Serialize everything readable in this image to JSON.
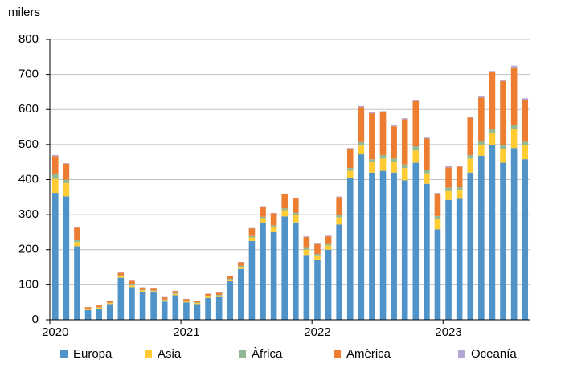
{
  "chart_data": {
    "type": "stacked-bar",
    "y_label": "milers",
    "categories": [
      "2020",
      null,
      null,
      null,
      null,
      null,
      null,
      null,
      null,
      null,
      null,
      null,
      "2021",
      null,
      null,
      null,
      null,
      null,
      null,
      null,
      null,
      null,
      null,
      null,
      "2022",
      null,
      null,
      null,
      null,
      null,
      null,
      null,
      null,
      null,
      null,
      null,
      "2023",
      null,
      null,
      null,
      null,
      null,
      null,
      null
    ],
    "series": [
      {
        "name": "Europa",
        "color": "#4f93c8",
        "values": [
          362,
          352,
          210,
          28,
          32,
          45,
          120,
          93,
          80,
          78,
          52,
          70,
          50,
          45,
          62,
          65,
          110,
          145,
          225,
          278,
          250,
          295,
          278,
          185,
          172,
          200,
          272,
          405,
          472,
          420,
          425,
          420,
          398,
          448,
          388,
          258,
          342,
          345,
          420,
          468,
          498,
          448,
          490,
          458
        ]
      },
      {
        "name": "Asia",
        "color": "#ffcc33",
        "values": [
          40,
          38,
          12,
          2,
          3,
          3,
          5,
          5,
          4,
          4,
          4,
          4,
          3,
          3,
          4,
          4,
          5,
          6,
          10,
          12,
          15,
          18,
          22,
          15,
          12,
          12,
          20,
          20,
          25,
          30,
          35,
          30,
          35,
          35,
          30,
          30,
          25,
          25,
          40,
          32,
          35,
          40,
          55,
          40
        ]
      },
      {
        "name": "Àfrica",
        "color": "#93b893",
        "values": [
          15,
          10,
          5,
          1,
          1,
          1,
          2,
          3,
          2,
          2,
          2,
          2,
          2,
          2,
          2,
          2,
          2,
          3,
          4,
          4,
          5,
          5,
          5,
          5,
          4,
          4,
          6,
          8,
          10,
          8,
          10,
          10,
          10,
          12,
          10,
          8,
          10,
          8,
          10,
          10,
          10,
          10,
          10,
          10
        ]
      },
      {
        "name": "Amèrica",
        "color": "#ed7d31",
        "values": [
          50,
          45,
          36,
          5,
          5,
          5,
          7,
          10,
          6,
          5,
          6,
          6,
          4,
          4,
          6,
          6,
          7,
          10,
          22,
          27,
          34,
          40,
          41,
          31,
          28,
          22,
          52,
          55,
          100,
          131,
          122,
          92,
          129,
          129,
          89,
          63,
          58,
          59,
          107,
          124,
          163,
          183,
          163,
          120
        ]
      },
      {
        "name": "Oceanía",
        "color": "#b4a7d6",
        "values": [
          3,
          2,
          2,
          1,
          1,
          1,
          1,
          1,
          1,
          1,
          1,
          1,
          1,
          1,
          1,
          1,
          1,
          1,
          1,
          1,
          1,
          2,
          2,
          2,
          2,
          2,
          2,
          2,
          3,
          3,
          3,
          3,
          3,
          3,
          3,
          3,
          3,
          3,
          3,
          3,
          4,
          4,
          7,
          4
        ]
      }
    ],
    "ylim": [
      0,
      800
    ],
    "yticks": [
      0,
      100,
      200,
      300,
      400,
      500,
      600,
      700,
      800
    ],
    "grid": true,
    "legend": "bottom"
  }
}
